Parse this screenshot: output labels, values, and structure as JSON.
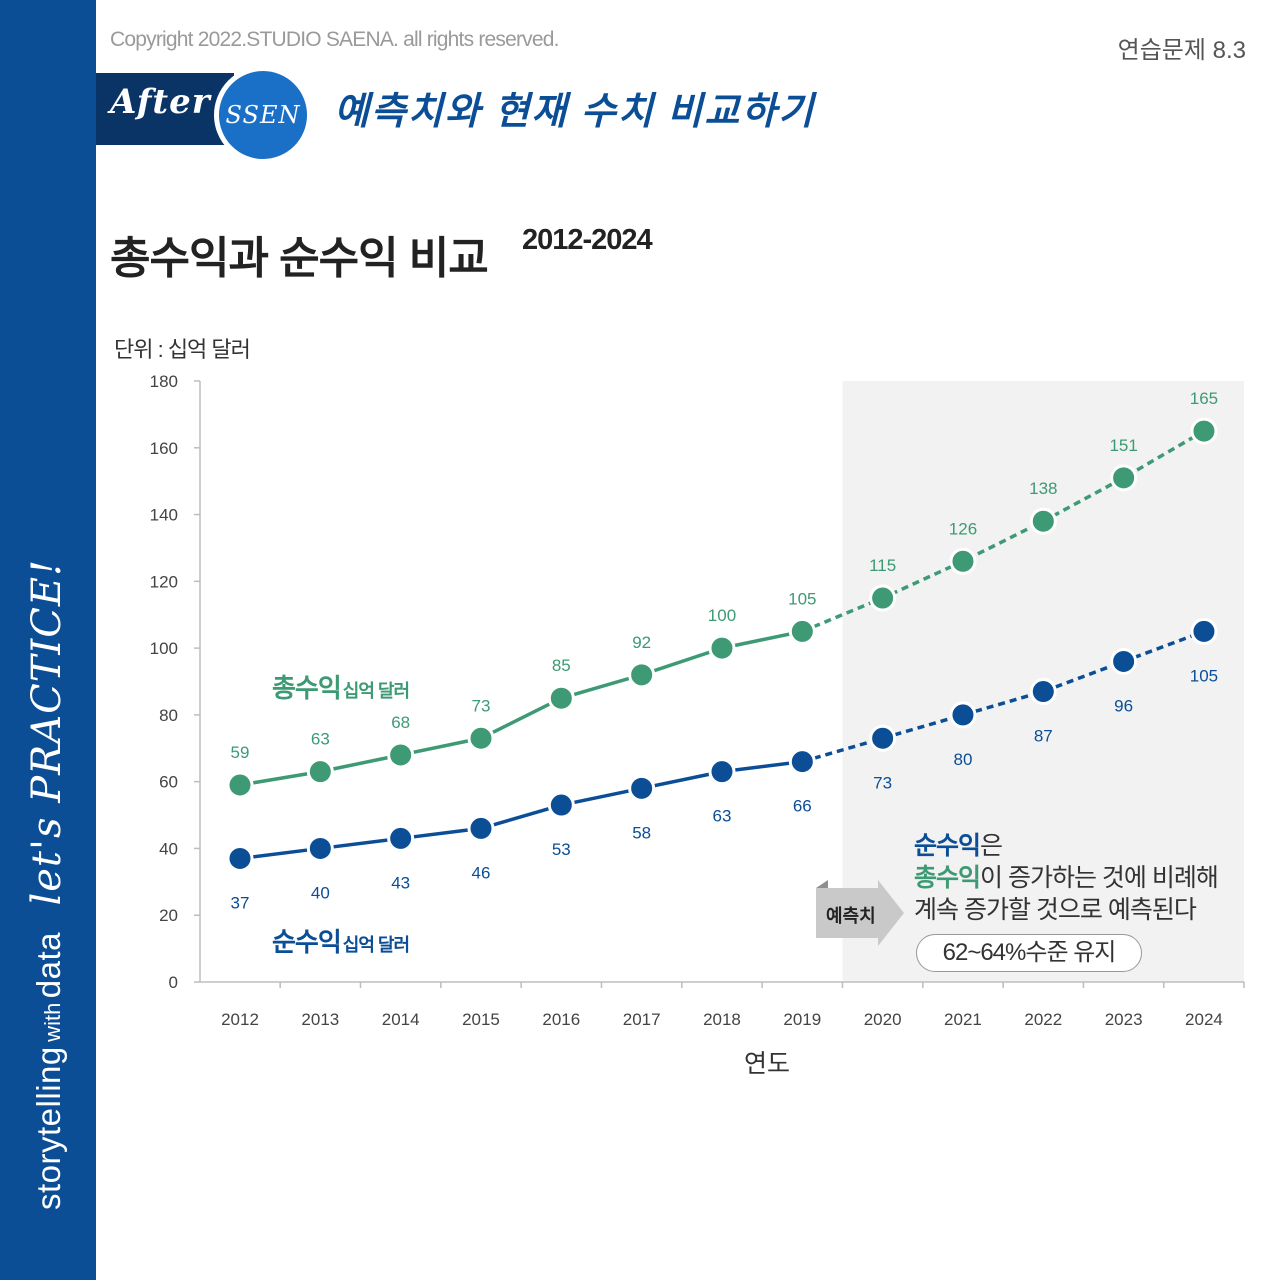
{
  "header": {
    "copyright": "Copyright 2022.STUDIO SAENA. all rights reserved.",
    "exercise": "연습문제 8.3",
    "banner_after": "After",
    "banner_ssen": "SSEN",
    "subtitle": "예측치와 현재 수치 비교하기"
  },
  "sidebar": {
    "storytelling": "storytelling",
    "with": "with",
    "data": "data",
    "lets_practice": "let's PRACTICE!"
  },
  "colors": {
    "gross": "#3d9a74",
    "net": "#0b4e96",
    "sidebar": "#0b4e96",
    "forecast_bg": "#f2f2f2"
  },
  "chart_data": {
    "type": "line",
    "title": "총수익과 순수익 비교",
    "title_years": "2012-2024",
    "unit": "단위 : 십억 달러",
    "xlabel": "연도",
    "ylabel": "",
    "ylim": [
      0,
      180
    ],
    "yticks": [
      0,
      20,
      40,
      60,
      80,
      100,
      120,
      140,
      160,
      180
    ],
    "categories": [
      "2012",
      "2013",
      "2014",
      "2015",
      "2016",
      "2017",
      "2018",
      "2019",
      "2020",
      "2021",
      "2022",
      "2023",
      "2024"
    ],
    "forecast_start": "2020",
    "series": [
      {
        "name": "총수익",
        "unit": "십억 달러",
        "values": [
          59,
          63,
          68,
          73,
          85,
          92,
          100,
          105,
          115,
          126,
          138,
          151,
          165
        ]
      },
      {
        "name": "순수익",
        "unit": "십억 달러",
        "values": [
          37,
          40,
          43,
          46,
          53,
          58,
          63,
          66,
          73,
          80,
          87,
          96,
          105
        ]
      }
    ],
    "forecast_label": "예측치",
    "annotation": {
      "net": "순수익",
      "line1_rest": "은",
      "gross": "총수익",
      "line2_rest": "이 증가하는 것에 비례해",
      "line3": "계속 증가할 것으로 예측된다",
      "pill": "62~64%수준 유지"
    }
  }
}
